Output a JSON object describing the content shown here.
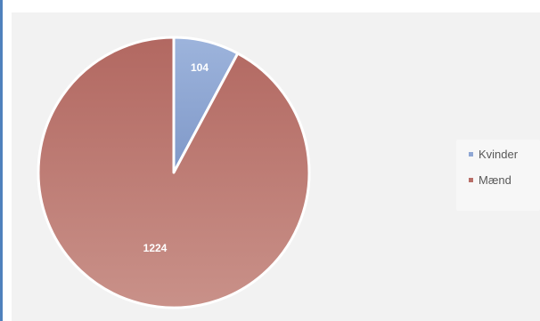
{
  "chart_data": {
    "type": "pie",
    "title": "",
    "slices": [
      {
        "label": "Kvinder",
        "value": 104,
        "color": "#8fa7d4"
      },
      {
        "label": "Mænd",
        "value": 1224,
        "color": "#b86e68"
      }
    ],
    "start_angle_deg": 0,
    "direction": "clockwise",
    "data_labels": [
      "104",
      "1224"
    ],
    "legend": {
      "position": "right",
      "entries": [
        "Kvinder",
        "Mænd"
      ]
    }
  }
}
